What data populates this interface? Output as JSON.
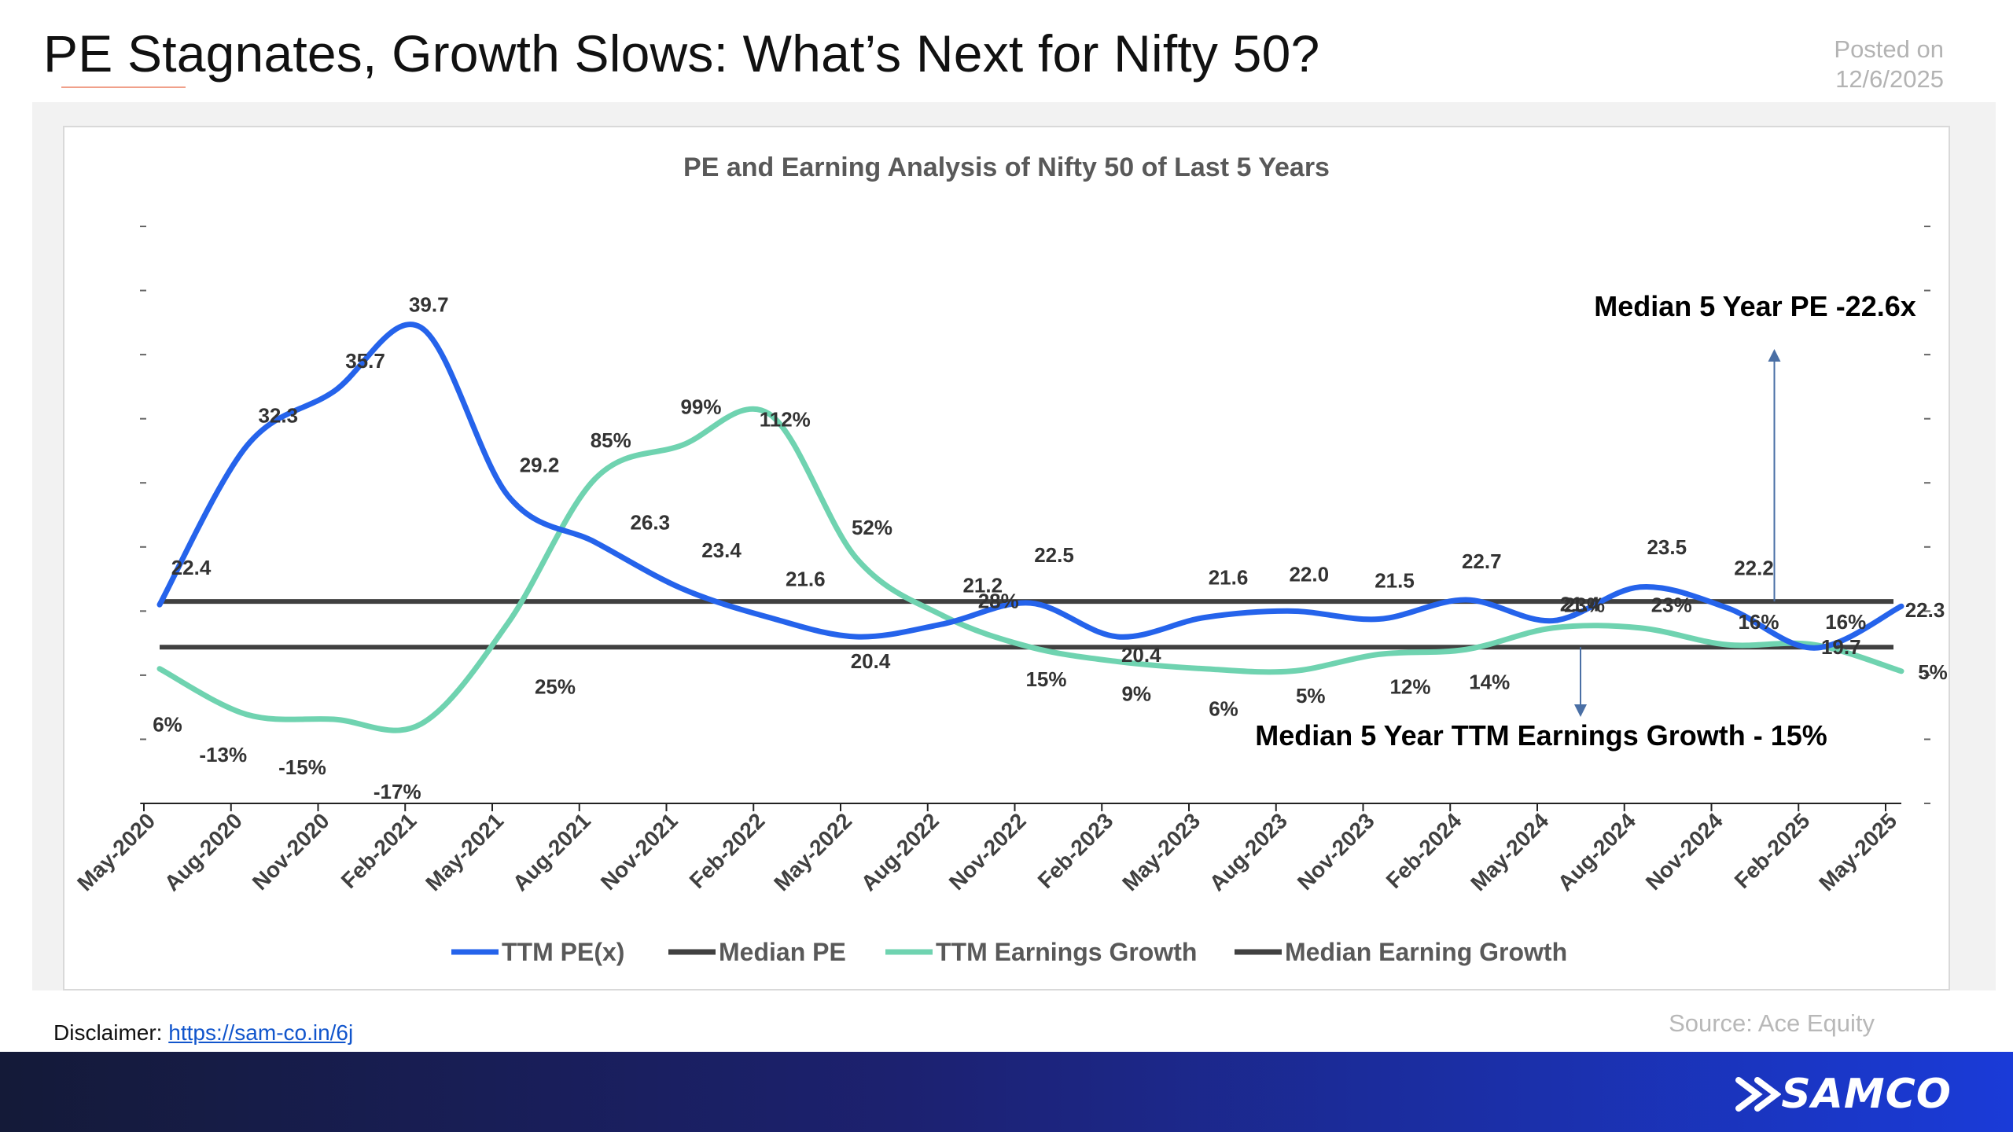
{
  "page": {
    "headline": "PE Stagnates, Growth Slows: What’s Next for Nifty 50?",
    "posted_label": "Posted on",
    "posted_date": "12/6/2025",
    "disclaimer_label": "Disclaimer:",
    "disclaimer_link": "https://sam-co.in/6j",
    "source": "Source: Ace Equity",
    "logo_text": "SAMCO"
  },
  "colors": {
    "pe_line": "#2563eb",
    "growth_line": "#6fd3b0",
    "median_line": "#404040",
    "annotation_arrow": "#4a6fa5"
  },
  "chart_data": {
    "type": "line",
    "title": "PE and Earning Analysis of Nifty 50 of Last 5 Years",
    "categories": [
      "May-2020",
      "Aug-2020",
      "Nov-2020",
      "Feb-2021",
      "May-2021",
      "Aug-2021",
      "Nov-2021",
      "Feb-2022",
      "May-2022",
      "Aug-2022",
      "Nov-2022",
      "Feb-2023",
      "May-2023",
      "Aug-2023",
      "Nov-2023",
      "Feb-2024",
      "May-2024",
      "Aug-2024",
      "Nov-2024",
      "Feb-2025",
      "May-2025"
    ],
    "pe_ylim": [
      10,
      46
    ],
    "growth_ylim": [
      -50,
      190
    ],
    "series": [
      {
        "name": "TTM PE(x)",
        "axis": "left",
        "values": [
          22.4,
          32.3,
          35.7,
          39.7,
          29.2,
          26.3,
          23.4,
          21.6,
          20.4,
          21.2,
          22.5,
          20.4,
          21.6,
          22.0,
          21.5,
          22.7,
          21.4,
          23.5,
          22.2,
          19.7,
          22.3
        ],
        "labels": [
          "22.4",
          "32.3",
          "35.7",
          "39.7",
          "29.2",
          "26.3",
          "23.4",
          "21.6",
          "20.4",
          "21.2",
          "22.5",
          "20.4",
          "21.6",
          "22.0",
          "21.5",
          "22.7",
          "21.4",
          "23.5",
          "22.2",
          "19.7",
          "22.3"
        ]
      },
      {
        "name": "Median PE",
        "axis": "left",
        "values": [
          22.6,
          22.6,
          22.6,
          22.6,
          22.6,
          22.6,
          22.6,
          22.6,
          22.6,
          22.6,
          22.6,
          22.6,
          22.6,
          22.6,
          22.6,
          22.6,
          22.6,
          22.6,
          22.6,
          22.6,
          22.6
        ]
      },
      {
        "name": "TTM Earnings Growth",
        "axis": "right",
        "values": [
          6,
          -13,
          -15,
          -17,
          25,
          85,
          99,
          112,
          52,
          28,
          15,
          9,
          6,
          5,
          12,
          14,
          23,
          23,
          16,
          16,
          5
        ],
        "labels": [
          "6%",
          "-13%",
          "-15%",
          "-17%",
          "25%",
          "85%",
          "99%",
          "112%",
          "52%",
          "28%",
          "15%",
          "9%",
          "6%",
          "5%",
          "12%",
          "14%",
          "23%",
          "23%",
          "16%",
          "16%",
          "5%"
        ]
      },
      {
        "name": "Median Earning Growth",
        "axis": "right",
        "values": [
          15,
          15,
          15,
          15,
          15,
          15,
          15,
          15,
          15,
          15,
          15,
          15,
          15,
          15,
          15,
          15,
          15,
          15,
          15,
          15,
          15
        ]
      }
    ],
    "annotations": [
      "Median 5 Year PE -22.6x",
      "Median 5 Year TTM Earnings Growth - 15%"
    ],
    "legend": {
      "position": "bottom",
      "items": [
        "TTM PE(x)",
        "Median PE",
        "TTM Earnings Growth",
        "Median Earning Growth"
      ]
    },
    "grid": false
  }
}
